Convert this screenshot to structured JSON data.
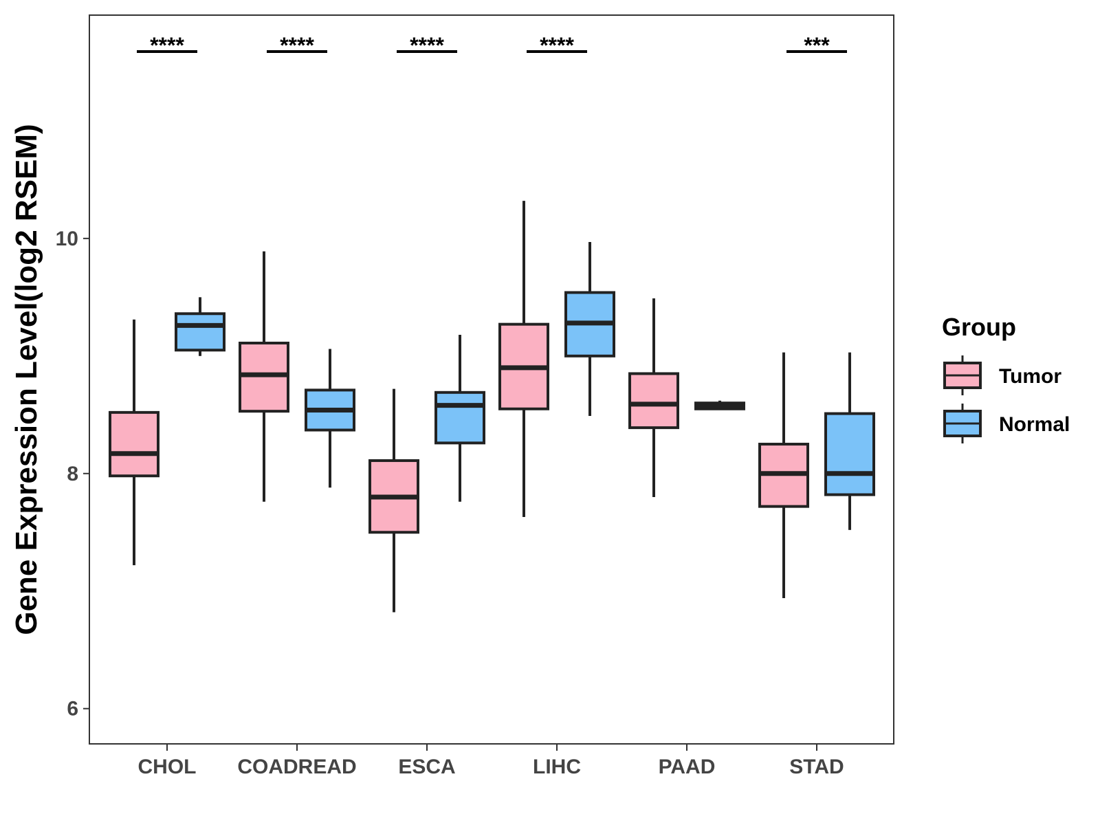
{
  "chart_data": {
    "type": "boxplot",
    "title": "",
    "xlabel": "",
    "ylabel": "Gene Expression Level(log2 RSEM)",
    "ylim": [
      5.7,
      11.9
    ],
    "yticks": [
      6,
      8,
      10
    ],
    "grid": false,
    "legend_position": "right",
    "legend": {
      "title": "Group",
      "entries": [
        {
          "name": "Tumor",
          "color": "#FBB1C2"
        },
        {
          "name": "Normal",
          "color": "#7BC2F8"
        }
      ]
    },
    "categories": [
      "CHOL",
      "COADREAD",
      "ESCA",
      "LIHC",
      "PAAD",
      "STAD"
    ],
    "series": [
      {
        "name": "Tumor",
        "color": "#FBB1C2",
        "boxes": [
          {
            "whisker_low": 7.22,
            "q1": 7.98,
            "median": 8.17,
            "q3": 8.52,
            "whisker_high": 9.31
          },
          {
            "whisker_low": 7.76,
            "q1": 8.53,
            "median": 8.84,
            "q3": 9.11,
            "whisker_high": 9.89
          },
          {
            "whisker_low": 6.82,
            "q1": 7.5,
            "median": 7.8,
            "q3": 8.11,
            "whisker_high": 8.72
          },
          {
            "whisker_low": 7.63,
            "q1": 8.55,
            "median": 8.9,
            "q3": 9.27,
            "whisker_high": 10.32
          },
          {
            "whisker_low": 7.8,
            "q1": 8.39,
            "median": 8.59,
            "q3": 8.85,
            "whisker_high": 9.49
          },
          {
            "whisker_low": 6.94,
            "q1": 7.72,
            "median": 8.0,
            "q3": 8.25,
            "whisker_high": 9.03
          }
        ]
      },
      {
        "name": "Normal",
        "color": "#7BC2F8",
        "boxes": [
          {
            "whisker_low": 9.0,
            "q1": 9.05,
            "median": 9.26,
            "q3": 9.36,
            "whisker_high": 9.5
          },
          {
            "whisker_low": 7.88,
            "q1": 8.37,
            "median": 8.54,
            "q3": 8.71,
            "whisker_high": 9.06
          },
          {
            "whisker_low": 7.76,
            "q1": 8.26,
            "median": 8.58,
            "q3": 8.69,
            "whisker_high": 9.18
          },
          {
            "whisker_low": 8.49,
            "q1": 9.0,
            "median": 9.28,
            "q3": 9.54,
            "whisker_high": 9.97
          },
          {
            "whisker_low": 8.55,
            "q1": 8.55,
            "median": 8.57,
            "q3": 8.6,
            "whisker_high": 8.62
          },
          {
            "whisker_low": 7.52,
            "q1": 7.82,
            "median": 8.0,
            "q3": 8.51,
            "whisker_high": 9.03
          }
        ]
      }
    ],
    "significance": [
      "****",
      "****",
      "****",
      "****",
      "",
      "***"
    ]
  }
}
